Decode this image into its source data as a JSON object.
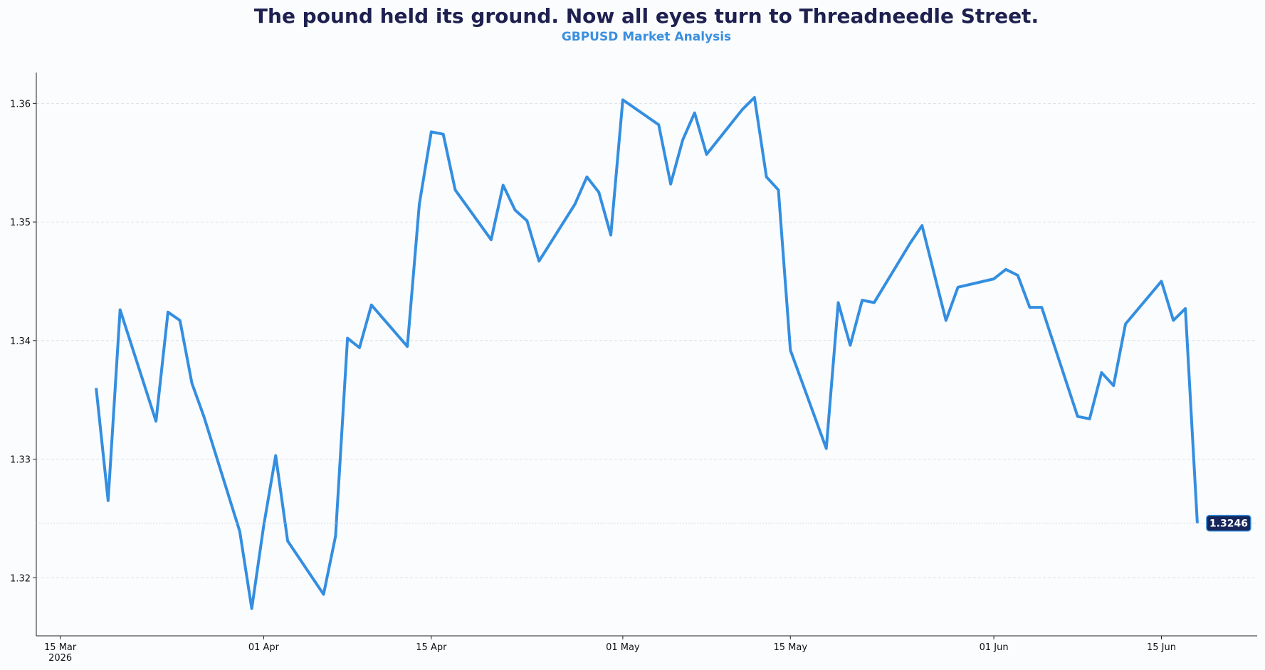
{
  "chart_data": {
    "type": "line",
    "title": "The pound held its ground. Now all eyes turn to Threadneedle Street.",
    "subtitle": "GBPUSD Market Analysis",
    "x": [
      "2026-03-18",
      "2026-03-19",
      "2026-03-20",
      "2026-03-23",
      "2026-03-24",
      "2026-03-25",
      "2026-03-26",
      "2026-03-27",
      "2026-03-30",
      "2026-03-31",
      "2026-04-01",
      "2026-04-02",
      "2026-04-03",
      "2026-04-06",
      "2026-04-07",
      "2026-04-08",
      "2026-04-09",
      "2026-04-10",
      "2026-04-13",
      "2026-04-14",
      "2026-04-15",
      "2026-04-16",
      "2026-04-17",
      "2026-04-20",
      "2026-04-21",
      "2026-04-22",
      "2026-04-23",
      "2026-04-24",
      "2026-04-27",
      "2026-04-28",
      "2026-04-29",
      "2026-04-30",
      "2026-05-01",
      "2026-05-04",
      "2026-05-05",
      "2026-05-06",
      "2026-05-07",
      "2026-05-08",
      "2026-05-11",
      "2026-05-12",
      "2026-05-13",
      "2026-05-14",
      "2026-05-15",
      "2026-05-18",
      "2026-05-19",
      "2026-05-20",
      "2026-05-21",
      "2026-05-22",
      "2026-05-25",
      "2026-05-26",
      "2026-05-28",
      "2026-05-29",
      "2026-06-01",
      "2026-06-02",
      "2026-06-03",
      "2026-06-04",
      "2026-06-05",
      "2026-06-08",
      "2026-06-09",
      "2026-06-10",
      "2026-06-11",
      "2026-06-12",
      "2026-06-15",
      "2026-06-16",
      "2026-06-17",
      "2026-06-18"
    ],
    "values": [
      1.336,
      1.3265,
      1.3426,
      1.3332,
      1.3424,
      1.3417,
      1.3364,
      1.3336,
      1.3239,
      1.3174,
      1.3244,
      1.3303,
      1.3231,
      1.3186,
      1.3235,
      1.3402,
      1.3394,
      1.343,
      1.3395,
      1.3515,
      1.3576,
      1.3574,
      1.3527,
      1.3485,
      1.3531,
      1.351,
      1.3501,
      1.3467,
      1.3515,
      1.3538,
      1.3525,
      1.3489,
      1.3603,
      1.3582,
      1.3532,
      1.3569,
      1.3592,
      1.3557,
      1.3595,
      1.3605,
      1.3538,
      1.3527,
      1.3392,
      1.3309,
      1.3432,
      1.3396,
      1.3434,
      1.3432,
      1.3482,
      1.3497,
      1.3417,
      1.3445,
      1.3452,
      1.346,
      1.3455,
      1.3428,
      1.3428,
      1.3336,
      1.3334,
      1.3373,
      1.3362,
      1.3414,
      1.345,
      1.3417,
      1.3427,
      1.3246
    ],
    "color": "#348ee0",
    "xlim": [
      "2026-03-13",
      "2026-06-23"
    ],
    "xticks": [
      {
        "value": "2026-03-15",
        "label": "15 Mar\n2026"
      },
      {
        "value": "2026-04-01",
        "label": "01 Apr"
      },
      {
        "value": "2026-04-15",
        "label": "15 Apr"
      },
      {
        "value": "2026-05-01",
        "label": "01 May"
      },
      {
        "value": "2026-05-15",
        "label": "15 May"
      },
      {
        "value": "2026-06-01",
        "label": "01 Jun"
      },
      {
        "value": "2026-06-15",
        "label": "15 Jun"
      }
    ],
    "ylim": [
      1.3151,
      1.3626
    ],
    "yticks": [
      1.32,
      1.33,
      1.34,
      1.35,
      1.36
    ],
    "grid": true
  }
}
